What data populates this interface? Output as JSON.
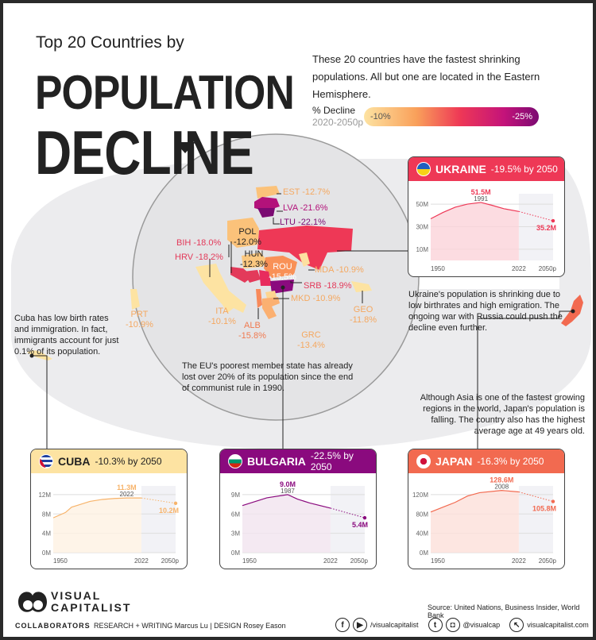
{
  "header": {
    "kicker": "Top 20 Countries by",
    "title_line1": "POPULATION",
    "title_line2": "DECLINE",
    "description": "These 20 countries have the fastest shrinking populations. All but one are located in the Eastern Hemisphere."
  },
  "legend": {
    "label": "% Decline",
    "sublabel": "2020-2050p",
    "min_label": "-10%",
    "max_label": "-25%",
    "colors": [
      "#fde3a2",
      "#f9a05a",
      "#ee3856",
      "#c4137a",
      "#7b0a72"
    ]
  },
  "map_labels": [
    {
      "code": "EST",
      "value": "-12.7%",
      "color": "#f5a860"
    },
    {
      "code": "LVA",
      "value": "-21.6%",
      "color": "#b3127a"
    },
    {
      "code": "LTU",
      "value": "-22.1%",
      "color": "#7b0a72"
    },
    {
      "code": "POL",
      "value": "-12.0%",
      "color": "#222"
    },
    {
      "code": "BIH",
      "value": "-18.0%",
      "color": "#e33a5a"
    },
    {
      "code": "HRV",
      "value": "-18.2%",
      "color": "#e33a5a"
    },
    {
      "code": "HUN",
      "value": "-12.3%",
      "color": "#222"
    },
    {
      "code": "ROU",
      "value": "-15.5%",
      "color": "#fff"
    },
    {
      "code": "MDA",
      "value": "-10.9%",
      "color": "#f5a860"
    },
    {
      "code": "SRB",
      "value": "-18.9%",
      "color": "#e33a5a"
    },
    {
      "code": "PRT",
      "value": "-10.9%",
      "color": "#f5a860"
    },
    {
      "code": "ITA",
      "value": "-10.1%",
      "color": "#f5a860"
    },
    {
      "code": "MKD",
      "value": "-10.9%",
      "color": "#f5a860"
    },
    {
      "code": "GEO",
      "value": "-11.8%",
      "color": "#f5a860"
    },
    {
      "code": "ALB",
      "value": "-15.8%",
      "color": "#f07a50"
    },
    {
      "code": "GRC",
      "value": "-13.4%",
      "color": "#f5a860"
    }
  ],
  "notes": {
    "ukraine": "Ukraine's population is shrinking due to low birthrates and high emigration. The ongoing war with Russia could push the decline even further.",
    "cuba": "Cuba has low birth rates and immigration. In fact, immigrants account for just 0.1% of its population.",
    "bulgaria": "The EU's poorest member state has already  lost over 20% of its population since the end of communist rule in 1990.",
    "japan": "Although Asia is one of the fastest growing regions in the world, Japan's population is falling. The country also has the  highest average age at 49 years old."
  },
  "chart_data": [
    {
      "type": "area",
      "id": "ukraine",
      "country": "UKRAINE",
      "headline": "-19.5% by 2050",
      "color": "#ee3856",
      "fill": "#fbd3d9",
      "x": [
        1950,
        1960,
        1970,
        1980,
        1991,
        2000,
        2010,
        2022
      ],
      "y": [
        37.0,
        42.6,
        47.3,
        50.0,
        51.5,
        49.0,
        45.9,
        43.5
      ],
      "projection": {
        "x": [
          2022,
          2050
        ],
        "y": [
          43.5,
          35.2
        ]
      },
      "peak": {
        "label": "51.5M",
        "year": "1991"
      },
      "end_label": "35.2M",
      "yticks": [
        10,
        30,
        50
      ],
      "ytick_labels": [
        "10M",
        "30M",
        "50M"
      ],
      "ylim": [
        0,
        55
      ],
      "xtick_labels": [
        "1950",
        "2022",
        "2050p"
      ]
    },
    {
      "type": "area",
      "id": "cuba",
      "country": "CUBA",
      "headline": "-10.3% by 2050",
      "color": "#f7b36a",
      "fill": "#fef1e2",
      "x": [
        1950,
        1960,
        1965,
        1970,
        1980,
        1990,
        2000,
        2010,
        2022
      ],
      "y": [
        7.2,
        8.3,
        9.4,
        9.8,
        10.6,
        11.0,
        11.2,
        11.3,
        11.3
      ],
      "projection": {
        "x": [
          2022,
          2050
        ],
        "y": [
          11.3,
          10.2
        ]
      },
      "peak": {
        "label": "11.3M",
        "year": "2022"
      },
      "end_label": "10.2M",
      "yticks": [
        0,
        4,
        8,
        12
      ],
      "ytick_labels": [
        "0M",
        "4M",
        "8M",
        "12M"
      ],
      "ylim": [
        0,
        12.8
      ],
      "xtick_labels": [
        "1950",
        "2022",
        "2050p"
      ]
    },
    {
      "type": "area",
      "id": "bulgaria",
      "country": "BULGARIA",
      "headline": "-22.5% by 2050",
      "color": "#8a0a7e",
      "fill": "#f1e4ef",
      "x": [
        1950,
        1960,
        1970,
        1987,
        1995,
        2005,
        2022
      ],
      "y": [
        7.3,
        7.9,
        8.5,
        9.0,
        8.3,
        7.7,
        6.9
      ],
      "projection": {
        "x": [
          2022,
          2050
        ],
        "y": [
          6.9,
          5.4
        ]
      },
      "peak": {
        "label": "9.0M",
        "year": "1987"
      },
      "end_label": "5.4M",
      "yticks": [
        0,
        3,
        6,
        9
      ],
      "ytick_labels": [
        "0M",
        "3M",
        "6M",
        "9M"
      ],
      "ylim": [
        0,
        9.6
      ],
      "xtick_labels": [
        "1950",
        "2022",
        "2050p"
      ]
    },
    {
      "type": "area",
      "id": "japan",
      "country": "JAPAN",
      "headline": "-16.3% by 2050",
      "color": "#f26a50",
      "fill": "#fde0d9",
      "x": [
        1950,
        1960,
        1970,
        1980,
        1990,
        2008,
        2022
      ],
      "y": [
        84,
        94,
        104,
        117,
        124,
        128.6,
        125.5
      ],
      "projection": {
        "x": [
          2022,
          2050
        ],
        "y": [
          125.5,
          105.8
        ]
      },
      "peak": {
        "label": "128.6M",
        "year": "2008"
      },
      "end_label": "105.8M",
      "yticks": [
        0,
        40,
        80,
        120
      ],
      "ytick_labels": [
        "0M",
        "40M",
        "80M",
        "120M"
      ],
      "ylim": [
        0,
        128
      ],
      "xtick_labels": [
        "1950",
        "2022",
        "2050p"
      ]
    }
  ],
  "footer": {
    "brand_line1": "VISUAL",
    "brand_line2": "CAPITALIST",
    "collaborators": "COLLABORATORS",
    "credits": "RESEARCH + WRITING Marcus Lu |  DESIGN  Rosey Eason",
    "source": "Source: United Nations, Business Insider, World Bank",
    "facebook_youtube": "/visualcapitalist",
    "twitter_instagram": "@visualcap",
    "website": "visualcapitalist.com"
  }
}
